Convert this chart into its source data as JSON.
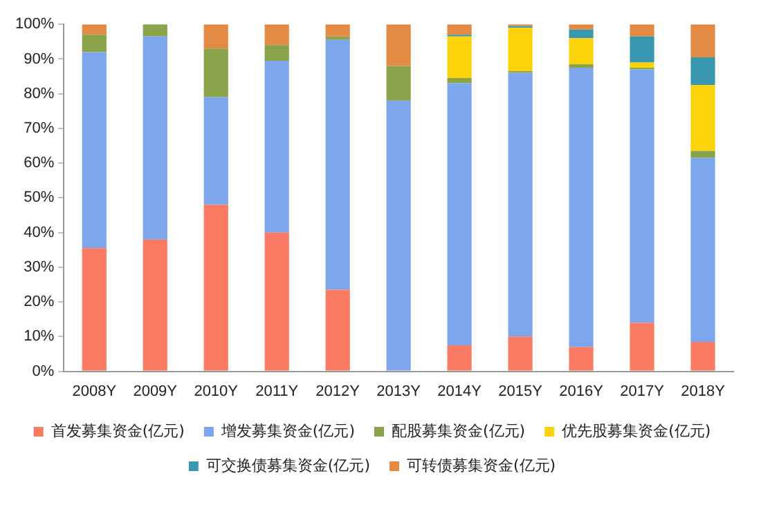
{
  "chart_data": {
    "type": "bar",
    "stacked": true,
    "categories": [
      "2008Y",
      "2009Y",
      "2010Y",
      "2011Y",
      "2012Y",
      "2013Y",
      "2014Y",
      "2015Y",
      "2016Y",
      "2017Y",
      "2018Y"
    ],
    "series": [
      {
        "name": "首发募集资金(亿元)",
        "color": "#fb7a63",
        "values": [
          35.5,
          38,
          48,
          40,
          23.5,
          0,
          7.5,
          10,
          7,
          14,
          8.5
        ]
      },
      {
        "name": "增发募集资金(亿元)",
        "color": "#7ea6ec",
        "values": [
          56.5,
          58.5,
          31,
          49.5,
          72,
          78,
          75.5,
          76,
          80.5,
          73,
          53
        ]
      },
      {
        "name": "配股募集资金(亿元)",
        "color": "#8aa24a",
        "values": [
          5,
          3.5,
          14,
          4.5,
          1,
          10,
          1.5,
          0.5,
          1,
          0.5,
          2
        ]
      },
      {
        "name": "优先股募集资金(亿元)",
        "color": "#fcd20a",
        "values": [
          0,
          0,
          0,
          0,
          0,
          0,
          12,
          12.5,
          7.5,
          1.5,
          19
        ]
      },
      {
        "name": "可交换债募集资金(亿元)",
        "color": "#3a97b0",
        "values": [
          0,
          0,
          0,
          0,
          0,
          0,
          0.5,
          0.5,
          2.5,
          7.5,
          8
        ]
      },
      {
        "name": "可转债募集资金(亿元)",
        "color": "#e38a45",
        "values": [
          3,
          0,
          7,
          6,
          3.5,
          12,
          3,
          0.5,
          1.5,
          3.5,
          9.5
        ]
      }
    ],
    "ylim": [
      0,
      100
    ],
    "yticks": [
      {
        "value": 0,
        "label": "0%"
      },
      {
        "value": 10,
        "label": "10%"
      },
      {
        "value": 20,
        "label": "20%"
      },
      {
        "value": 30,
        "label": "30%"
      },
      {
        "value": 40,
        "label": "40%"
      },
      {
        "value": 50,
        "label": "50%"
      },
      {
        "value": 60,
        "label": "60%"
      },
      {
        "value": 70,
        "label": "70%"
      },
      {
        "value": 80,
        "label": "80%"
      },
      {
        "value": 90,
        "label": "90%"
      },
      {
        "value": 100,
        "label": "100%"
      }
    ],
    "legend": "bottom",
    "grid": false
  }
}
